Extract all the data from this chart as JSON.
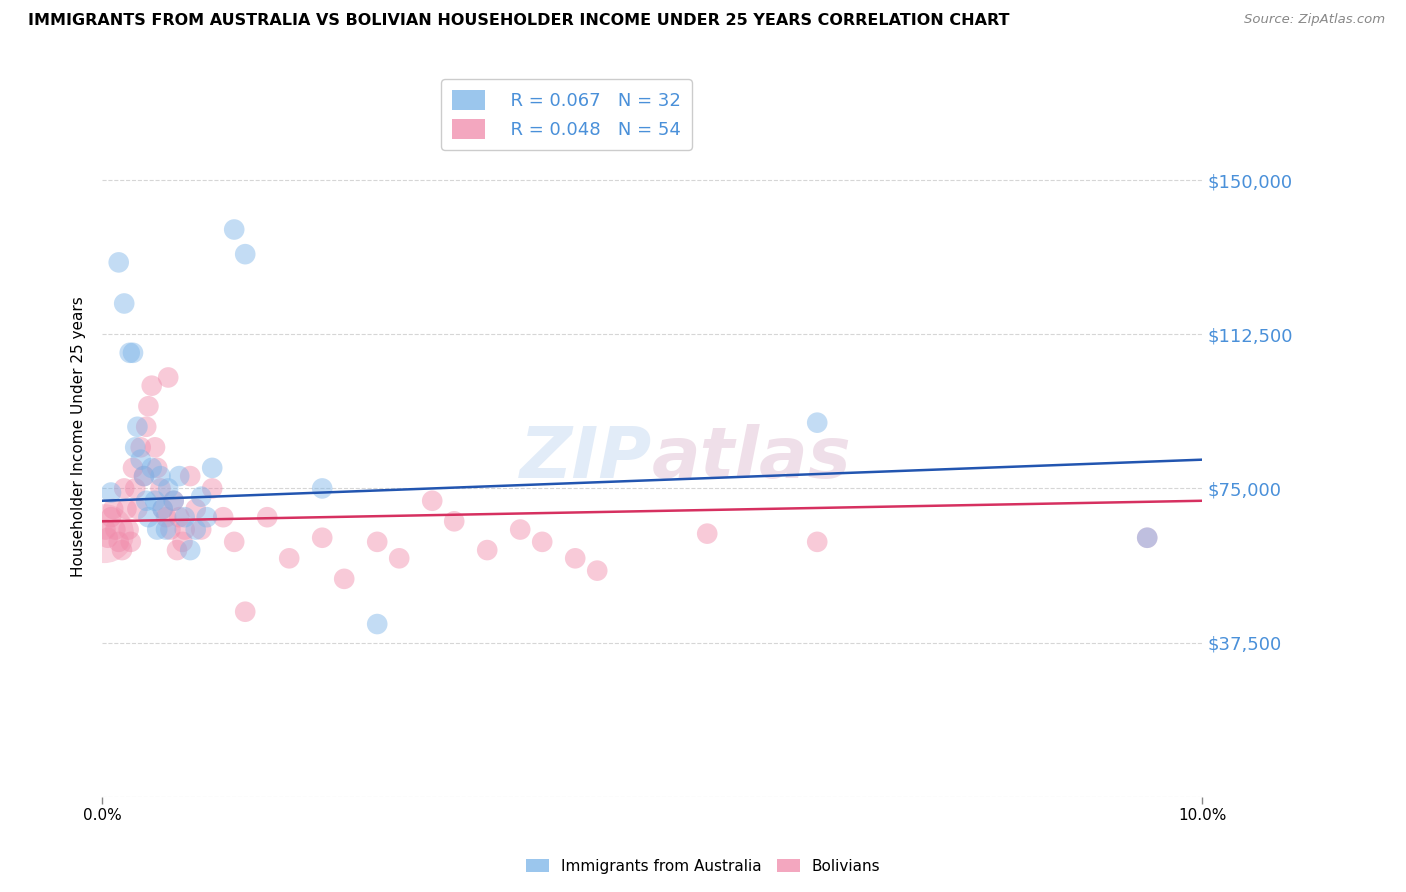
{
  "title": "IMMIGRANTS FROM AUSTRALIA VS BOLIVIAN HOUSEHOLDER INCOME UNDER 25 YEARS CORRELATION CHART",
  "source": "Source: ZipAtlas.com",
  "ylabel": "Householder Income Under 25 years",
  "xlim": [
    0.0,
    0.1
  ],
  "ylim": [
    0,
    175000
  ],
  "yticks": [
    0,
    37500,
    75000,
    112500,
    150000
  ],
  "ytick_labels": [
    "",
    "$37,500",
    "$75,000",
    "$112,500",
    "$150,000"
  ],
  "legend1_r": "R = 0.067",
  "legend1_n": "N = 32",
  "legend2_r": "R = 0.048",
  "legend2_n": "N = 54",
  "color_australia": "#7ab3e8",
  "color_bolivia": "#f08aaa",
  "color_line_australia": "#2255b0",
  "color_line_bolivia": "#d63060",
  "color_axis_labels": "#4a90d9",
  "background_color": "#ffffff",
  "grid_color": "#cccccc",
  "watermark": "ZIPatlas",
  "aus_line_x0": 0.0,
  "aus_line_y0": 72000,
  "aus_line_x1": 0.1,
  "aus_line_y1": 82000,
  "bol_line_x0": 0.0,
  "bol_line_y0": 67000,
  "bol_line_x1": 0.1,
  "bol_line_y1": 72000,
  "australia_x": [
    0.0008,
    0.0015,
    0.002,
    0.0025,
    0.0028,
    0.003,
    0.0032,
    0.0035,
    0.0038,
    0.004,
    0.0042,
    0.0045,
    0.0048,
    0.005,
    0.0053,
    0.0055,
    0.0058,
    0.006,
    0.0065,
    0.007,
    0.0075,
    0.008,
    0.0085,
    0.009,
    0.0095,
    0.01,
    0.012,
    0.013,
    0.02,
    0.025,
    0.065,
    0.095
  ],
  "australia_y": [
    74000,
    130000,
    120000,
    108000,
    108000,
    85000,
    90000,
    82000,
    78000,
    72000,
    68000,
    80000,
    72000,
    65000,
    78000,
    70000,
    65000,
    75000,
    72000,
    78000,
    68000,
    60000,
    65000,
    73000,
    68000,
    80000,
    138000,
    132000,
    75000,
    42000,
    91000,
    63000
  ],
  "bolivia_x": [
    0.0003,
    0.0005,
    0.0008,
    0.001,
    0.0012,
    0.0015,
    0.0018,
    0.002,
    0.0022,
    0.0024,
    0.0026,
    0.0028,
    0.003,
    0.0032,
    0.0035,
    0.0038,
    0.004,
    0.0042,
    0.0045,
    0.0048,
    0.005,
    0.0053,
    0.0055,
    0.0058,
    0.006,
    0.0062,
    0.0065,
    0.0068,
    0.007,
    0.0073,
    0.0075,
    0.008,
    0.0085,
    0.009,
    0.01,
    0.011,
    0.012,
    0.013,
    0.015,
    0.017,
    0.02,
    0.022,
    0.025,
    0.027,
    0.03,
    0.032,
    0.035,
    0.038,
    0.04,
    0.043,
    0.045,
    0.055,
    0.065,
    0.095
  ],
  "bolivia_y": [
    65000,
    63000,
    68000,
    70000,
    65000,
    62000,
    60000,
    75000,
    70000,
    65000,
    62000,
    80000,
    75000,
    70000,
    85000,
    78000,
    90000,
    95000,
    100000,
    85000,
    80000,
    75000,
    70000,
    68000,
    102000,
    65000,
    72000,
    60000,
    68000,
    62000,
    65000,
    78000,
    70000,
    65000,
    75000,
    68000,
    62000,
    45000,
    68000,
    58000,
    63000,
    53000,
    62000,
    58000,
    72000,
    67000,
    60000,
    65000,
    62000,
    58000,
    55000,
    64000,
    62000,
    63000
  ],
  "bolivia_large_x": [
    0.0002
  ],
  "bolivia_large_y": [
    64000
  ],
  "note_label1": "Immigrants from Australia",
  "note_label2": "Bolivians"
}
